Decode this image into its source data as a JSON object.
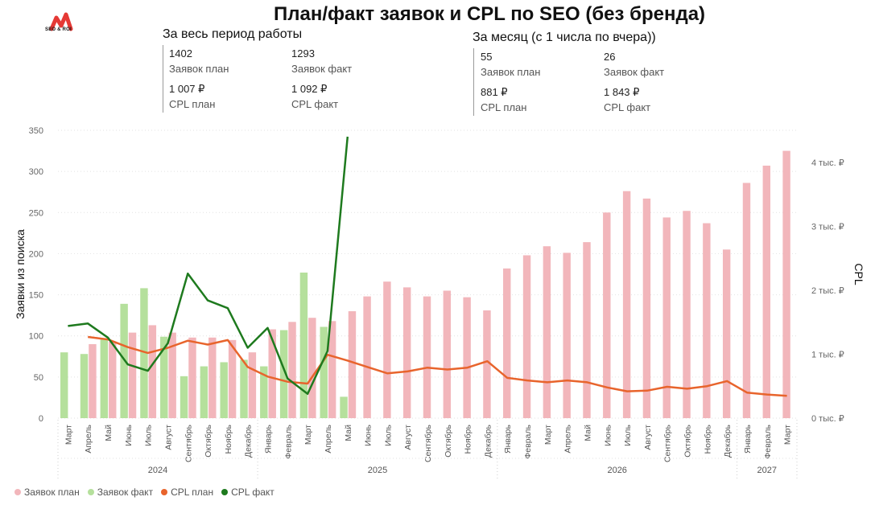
{
  "header": {
    "logo_text": "SEO & ROI",
    "title": "План/факт заявок и CPL по SEO (без бренда)"
  },
  "kpi_total": {
    "heading": "За весь период работы",
    "leads_plan_value": "1402",
    "leads_plan_label": "Заявок план",
    "leads_fact_value": "1293",
    "leads_fact_label": "Заявок факт",
    "cpl_plan_value": "1 007 ₽",
    "cpl_plan_label": "CPL план",
    "cpl_fact_value": "1 092 ₽",
    "cpl_fact_label": "CPL факт"
  },
  "kpi_month": {
    "heading": "За месяц (с 1 числа по вчера))",
    "leads_plan_value": "55",
    "leads_plan_label": "Заявок план",
    "leads_fact_value": "26",
    "leads_fact_label": "Заявок факт",
    "cpl_plan_value": "881 ₽",
    "cpl_plan_label": "CPL план",
    "cpl_fact_value": "1 843 ₽",
    "cpl_fact_label": "CPL факт"
  },
  "chart_data": {
    "type": "bar",
    "ylabel": "Заявки из поиска",
    "y2label": "CPL",
    "ylim": [
      0,
      350
    ],
    "y_ticks": [
      0,
      50,
      100,
      150,
      200,
      250,
      300,
      350
    ],
    "y2lim": [
      0,
      4500
    ],
    "y2_ticks": [
      {
        "value": 0,
        "label": "0 тыс. ₽"
      },
      {
        "value": 1000,
        "label": "1 тыс. ₽"
      },
      {
        "value": 2000,
        "label": "2 тыс. ₽"
      },
      {
        "value": 3000,
        "label": "3 тыс. ₽"
      },
      {
        "value": 4000,
        "label": "4 тыс. ₽"
      }
    ],
    "grid": true,
    "legend_position": "bottom-left",
    "categories": [
      "Март",
      "Апрель",
      "Май",
      "Июнь",
      "Июль",
      "Август",
      "Сентябрь",
      "Октябрь",
      "Ноябрь",
      "Декабрь",
      "Январь",
      "Февраль",
      "Март",
      "Апрель",
      "Май",
      "Июнь",
      "Июль",
      "Август",
      "Сентябрь",
      "Октябрь",
      "Ноябрь",
      "Декабрь",
      "Январь",
      "Февраль",
      "Март",
      "Апрель",
      "Май",
      "Июнь",
      "Июль",
      "Август",
      "Сентябрь",
      "Октябрь",
      "Ноябрь",
      "Декабрь",
      "Январь",
      "Февраль",
      "Март"
    ],
    "years": [
      {
        "label": "2024",
        "start": 0,
        "end": 9
      },
      {
        "label": "2025",
        "start": 10,
        "end": 21
      },
      {
        "label": "2026",
        "start": 22,
        "end": 33
      },
      {
        "label": "2027",
        "start": 34,
        "end": 36
      }
    ],
    "series": [
      {
        "name": "Заявок план",
        "kind": "bar",
        "axis": "left",
        "color": "#f2b6bb",
        "values": [
          null,
          90,
          93,
          104,
          113,
          104,
          98,
          98,
          95,
          80,
          108,
          117,
          122,
          118,
          130,
          148,
          166,
          159,
          148,
          155,
          147,
          131,
          182,
          198,
          209,
          201,
          214,
          250,
          276,
          267,
          244,
          252,
          237,
          205,
          286,
          307,
          325
        ]
      },
      {
        "name": "Заявок факт",
        "kind": "bar",
        "axis": "left",
        "color": "#b5e09c",
        "values": [
          80,
          78,
          96,
          139,
          158,
          99,
          51,
          63,
          68,
          71,
          63,
          107,
          177,
          111,
          26,
          null,
          null,
          null,
          null,
          null,
          null,
          null,
          null,
          null,
          null,
          null,
          null,
          null,
          null,
          null,
          null,
          null,
          null,
          null,
          null,
          null,
          null
        ]
      },
      {
        "name": "CPL план",
        "kind": "line",
        "axis": "right",
        "color": "#e8642c",
        "values": [
          null,
          1270,
          1230,
          1110,
          1020,
          1100,
          1210,
          1150,
          1220,
          800,
          650,
          570,
          540,
          990,
          900,
          800,
          700,
          730,
          790,
          760,
          790,
          890,
          630,
          590,
          560,
          590,
          560,
          480,
          420,
          430,
          490,
          460,
          500,
          580,
          400,
          370,
          350
        ]
      },
      {
        "name": "CPL факт",
        "kind": "line",
        "axis": "right",
        "color": "#1e7a1e",
        "values": [
          1440,
          1480,
          1260,
          840,
          740,
          1170,
          2260,
          1840,
          1720,
          1100,
          1410,
          620,
          380,
          1050,
          4400,
          null,
          null,
          null,
          null,
          null,
          null,
          null,
          null,
          null,
          null,
          null,
          null,
          null,
          null,
          null,
          null,
          null,
          null,
          null,
          null,
          null,
          null
        ]
      }
    ]
  }
}
